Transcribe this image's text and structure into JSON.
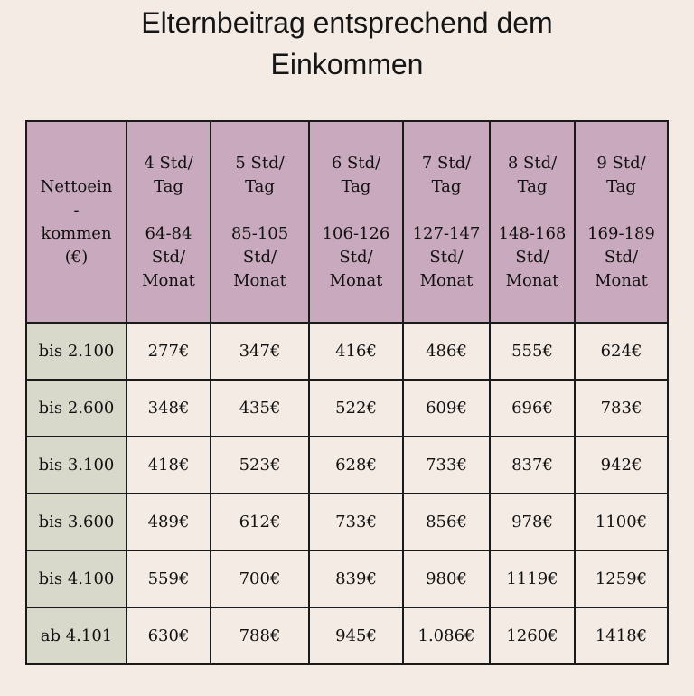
{
  "title_line1": "Elternbeitrag entsprechend dem",
  "title_line2": "Einkommen",
  "header": {
    "first": [
      "Nettoein",
      "-",
      "kommen",
      "(€)"
    ],
    "columns": [
      {
        "a": "4 Std/",
        "b": "Tag",
        "c": "64-84",
        "d": "Std/",
        "e": "Monat"
      },
      {
        "a": "5 Std/",
        "b": "Tag",
        "c": "85-105",
        "d": "Std/",
        "e": "Monat"
      },
      {
        "a": "6 Std/",
        "b": "Tag",
        "c": "106-126",
        "d": "Std/",
        "e": "Monat"
      },
      {
        "a": "7 Std/",
        "b": "Tag",
        "c": "127-147",
        "d": "Std/",
        "e": "Monat"
      },
      {
        "a": "8 Std/",
        "b": "Tag",
        "c": "148-168",
        "d": "Std/",
        "e": "Monat"
      },
      {
        "a": "9 Std/",
        "b": "Tag",
        "c": "169-189",
        "d": "Std/",
        "e": "Monat"
      }
    ]
  },
  "rows": [
    {
      "label": "bis 2.100",
      "values": [
        "277€",
        "347€",
        "416€",
        "486€",
        "555€",
        "624€"
      ]
    },
    {
      "label": "bis 2.600",
      "values": [
        "348€",
        "435€",
        "522€",
        "609€",
        "696€",
        "783€"
      ]
    },
    {
      "label": "bis 3.100",
      "values": [
        "418€",
        "523€",
        "628€",
        "733€",
        "837€",
        "942€"
      ]
    },
    {
      "label": "bis 3.600",
      "values": [
        "489€",
        "612€",
        "733€",
        "856€",
        "978€",
        "1100€"
      ]
    },
    {
      "label": "bis 4.100",
      "values": [
        "559€",
        "700€",
        "839€",
        "980€",
        "1119€",
        "1259€"
      ]
    },
    {
      "label": "ab 4.101",
      "values": [
        "630€",
        "788€",
        "945€",
        "1.086€",
        "1260€",
        "1418€"
      ]
    }
  ],
  "colors": {
    "background": "#f4ebe4",
    "header": "#c9a9bd",
    "row_label": "#d9d9cb",
    "border": "#1a1a1a"
  }
}
